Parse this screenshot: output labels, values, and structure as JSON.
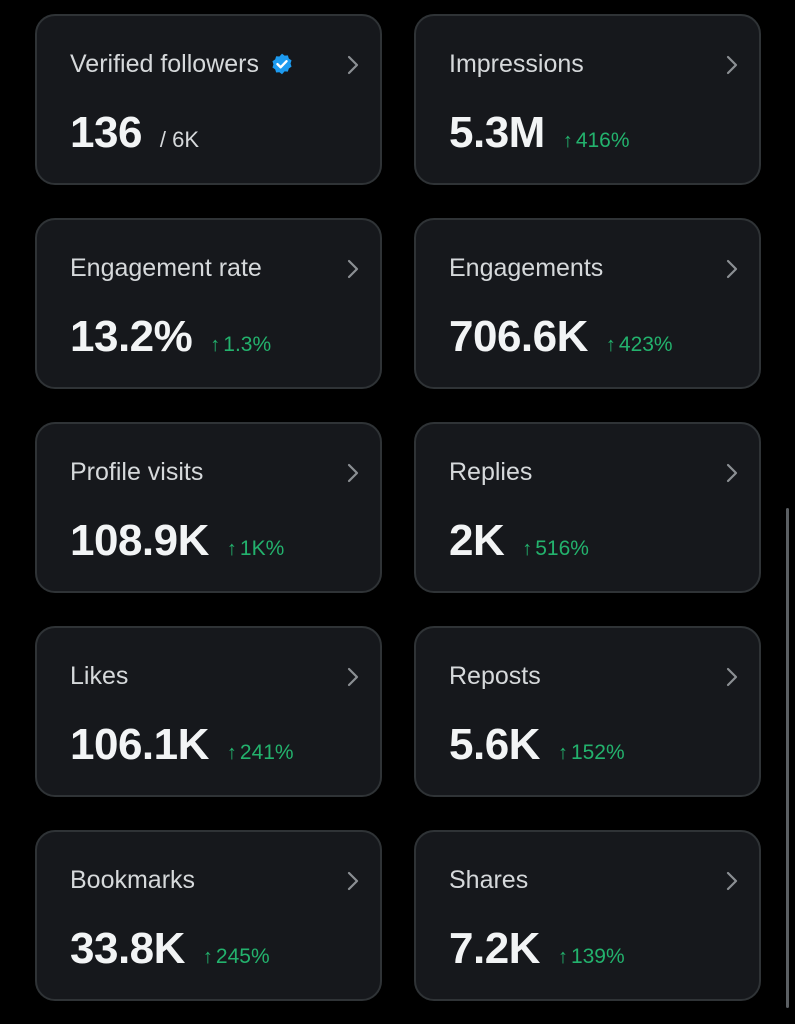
{
  "colors": {
    "background": "#000000",
    "card_background": "#16181c",
    "card_border": "#2f3336",
    "positive_change": "#23b26d",
    "verified_badge": "#1d9bf0"
  },
  "icons": {
    "chevron": "chevron-right-icon",
    "verified": "verified-badge-icon",
    "trend": "arrow-up-icon"
  },
  "cards": [
    {
      "label": "Verified followers",
      "value": "136",
      "denominator": "/ 6K",
      "change": null,
      "verified": true
    },
    {
      "label": "Impressions",
      "value": "5.3M",
      "denominator": null,
      "change": "416%"
    },
    {
      "label": "Engagement rate",
      "value": "13.2%",
      "denominator": null,
      "change": "1.3%"
    },
    {
      "label": "Engagements",
      "value": "706.6K",
      "denominator": null,
      "change": "423%"
    },
    {
      "label": "Profile visits",
      "value": "108.9K",
      "denominator": null,
      "change": "1K%"
    },
    {
      "label": "Replies",
      "value": "2K",
      "denominator": null,
      "change": "516%"
    },
    {
      "label": "Likes",
      "value": "106.1K",
      "denominator": null,
      "change": "241%"
    },
    {
      "label": "Reposts",
      "value": "5.6K",
      "denominator": null,
      "change": "152%"
    },
    {
      "label": "Bookmarks",
      "value": "33.8K",
      "denominator": null,
      "change": "245%"
    },
    {
      "label": "Shares",
      "value": "7.2K",
      "denominator": null,
      "change": "139%"
    }
  ]
}
